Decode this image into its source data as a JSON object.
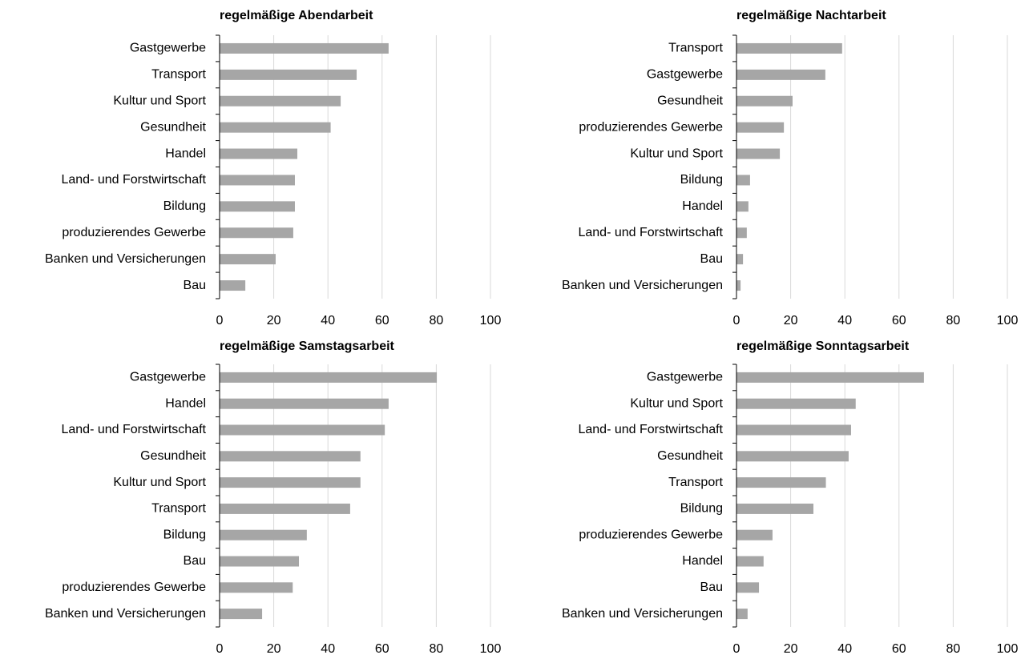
{
  "chart_data": [
    {
      "type": "bar",
      "orientation": "horizontal",
      "title": "regelmäßige Abendarbeit",
      "color": "#a6a6a6",
      "grid": true,
      "categories": [
        "Gastgewerbe",
        "Transport",
        "Kultur und Sport",
        "Gesundheit",
        "Handel",
        "Land- und Forstwirtschaft",
        "Bildung",
        "produzierendes Gewerbe",
        "Banken und Versicherungen",
        "Bau"
      ],
      "values": [
        62.4,
        50.6,
        44.7,
        41,
        28.7,
        27.8,
        27.8,
        27.2,
        20.7,
        9.5
      ],
      "xlim": [
        0,
        100
      ],
      "xticks": [
        0,
        20,
        40,
        60,
        80,
        100
      ]
    },
    {
      "type": "bar",
      "orientation": "horizontal",
      "title": "regelmäßige Nachtarbeit",
      "color": "#a6a6a6",
      "grid": true,
      "categories": [
        "Transport",
        "Gastgewerbe",
        "Gesundheit",
        "produzierendes Gewerbe",
        "Kultur und Sport",
        "Bildung",
        "Handel",
        "Land- und Forstwirtschaft",
        "Bau",
        "Banken und Versicherungen"
      ],
      "values": [
        39,
        32.8,
        20.7,
        17.5,
        16,
        5,
        4.4,
        3.8,
        2.4,
        1.5
      ],
      "xlim": [
        0,
        100
      ],
      "xticks": [
        0,
        20,
        40,
        60,
        80,
        100
      ]
    },
    {
      "type": "bar",
      "orientation": "horizontal",
      "title": "regelmäßige Samstagsarbeit",
      "color": "#a6a6a6",
      "grid": true,
      "categories": [
        "Gastgewerbe",
        "Handel",
        "Land- und Forstwirtschaft",
        "Gesundheit",
        "Kultur und Sport",
        "Transport",
        "Bildung",
        "Bau",
        "produzierendes Gewerbe",
        "Banken und Versicherungen"
      ],
      "values": [
        80.2,
        62.4,
        61,
        52,
        52,
        48.2,
        32.2,
        29.3,
        27,
        15.7
      ],
      "xlim": [
        0,
        100
      ],
      "xticks": [
        0,
        20,
        40,
        60,
        80,
        100
      ]
    },
    {
      "type": "bar",
      "orientation": "horizontal",
      "title": "regelmäßige Sonntagsarbeit",
      "color": "#a6a6a6",
      "grid": true,
      "categories": [
        "Gastgewerbe",
        "Kultur und Sport",
        "Land- und Forstwirtschaft",
        "Gesundheit",
        "Transport",
        "Bildung",
        "produzierendes Gewerbe",
        "Handel",
        "Bau",
        "Banken und Versicherungen"
      ],
      "values": [
        69.2,
        44,
        42.3,
        41.4,
        33,
        28.4,
        13.3,
        10,
        8.3,
        4.1
      ],
      "xlim": [
        0,
        100
      ],
      "xticks": [
        0,
        20,
        40,
        60,
        80,
        100
      ]
    }
  ]
}
